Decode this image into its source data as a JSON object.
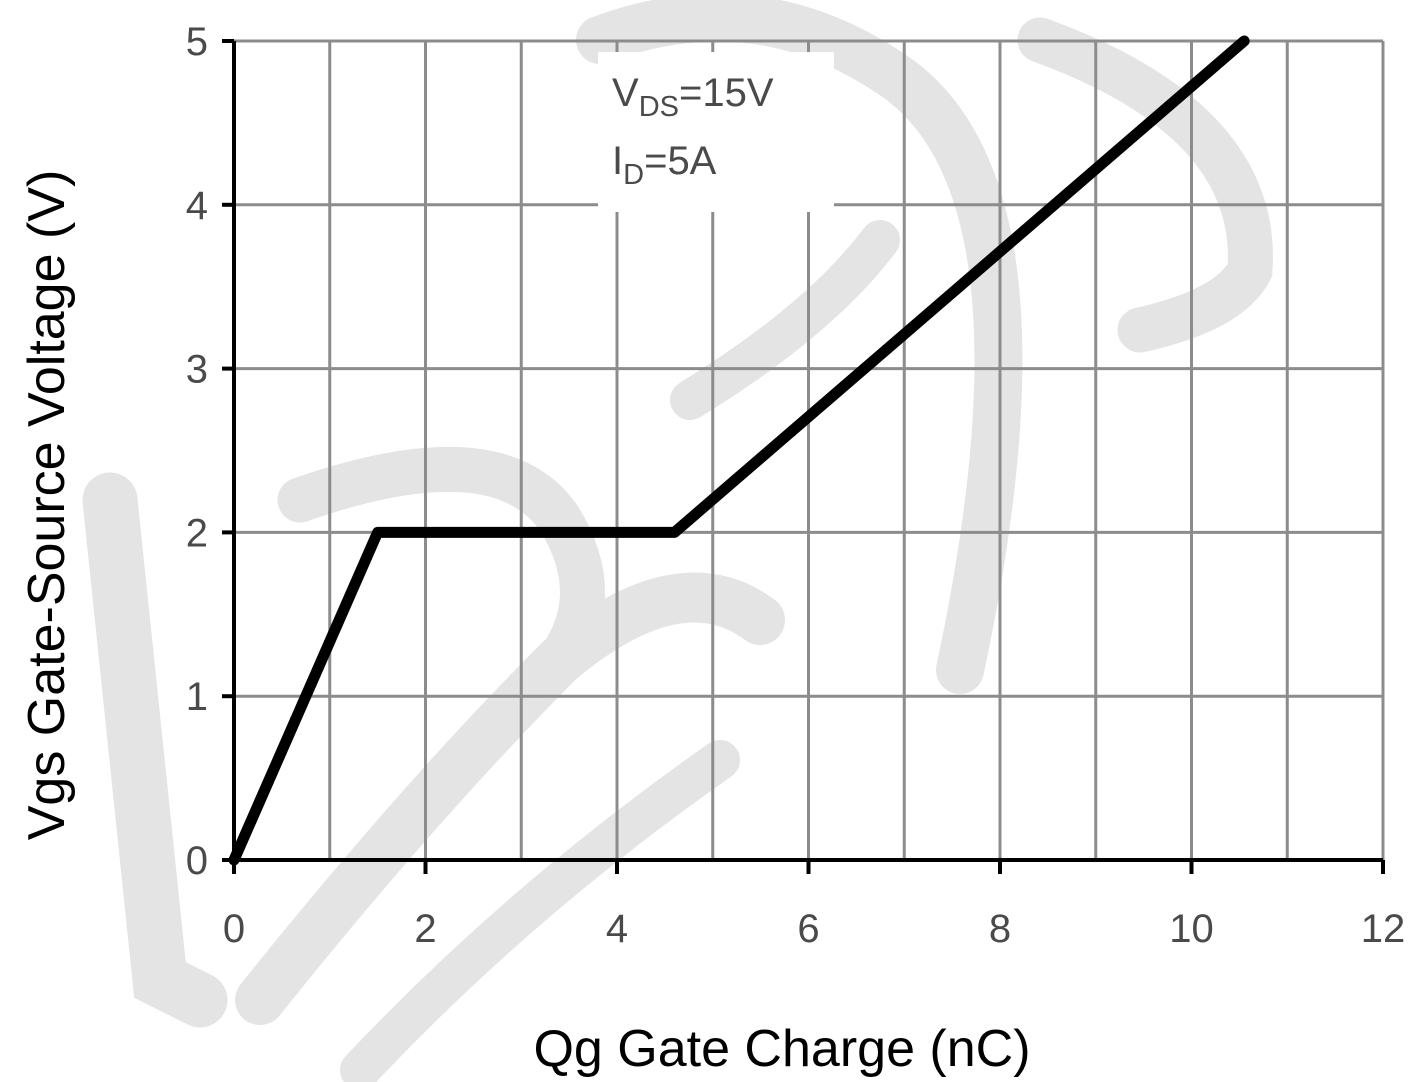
{
  "chart_data": {
    "type": "line",
    "title": "",
    "xlabel": "Qg Gate Charge (nC)",
    "ylabel": "Vgs Gate-Source Voltage (V)",
    "xlim": [
      0,
      12
    ],
    "ylim": [
      0,
      5
    ],
    "x_ticks": [
      0,
      2,
      4,
      6,
      8,
      10,
      12
    ],
    "x_tick_labels": [
      "0",
      "2",
      "4",
      "6",
      "8",
      "10",
      "12"
    ],
    "y_ticks": [
      0,
      1,
      2,
      3,
      4,
      5
    ],
    "y_tick_labels": [
      "0",
      "1",
      "2",
      "3",
      "4",
      "5"
    ],
    "grid": true,
    "grid_x_step": 1,
    "grid_y_step": 1,
    "series": [
      {
        "x": [
          0,
          1.5,
          4.6,
          10.55
        ],
        "y": [
          0,
          2,
          2,
          5
        ]
      }
    ],
    "annotations": [
      {
        "main": "V",
        "sub": "DS",
        "rest": "=15V"
      },
      {
        "main": "I",
        "sub": "D",
        "rest": "=5A"
      }
    ],
    "colors": {
      "line": "#000000",
      "grid": "#8c8c8c",
      "axis": "#000000",
      "tick_label": "#4a4a4a",
      "watermark": "#e4e4e4"
    },
    "watermark": "logo watermark in background"
  }
}
